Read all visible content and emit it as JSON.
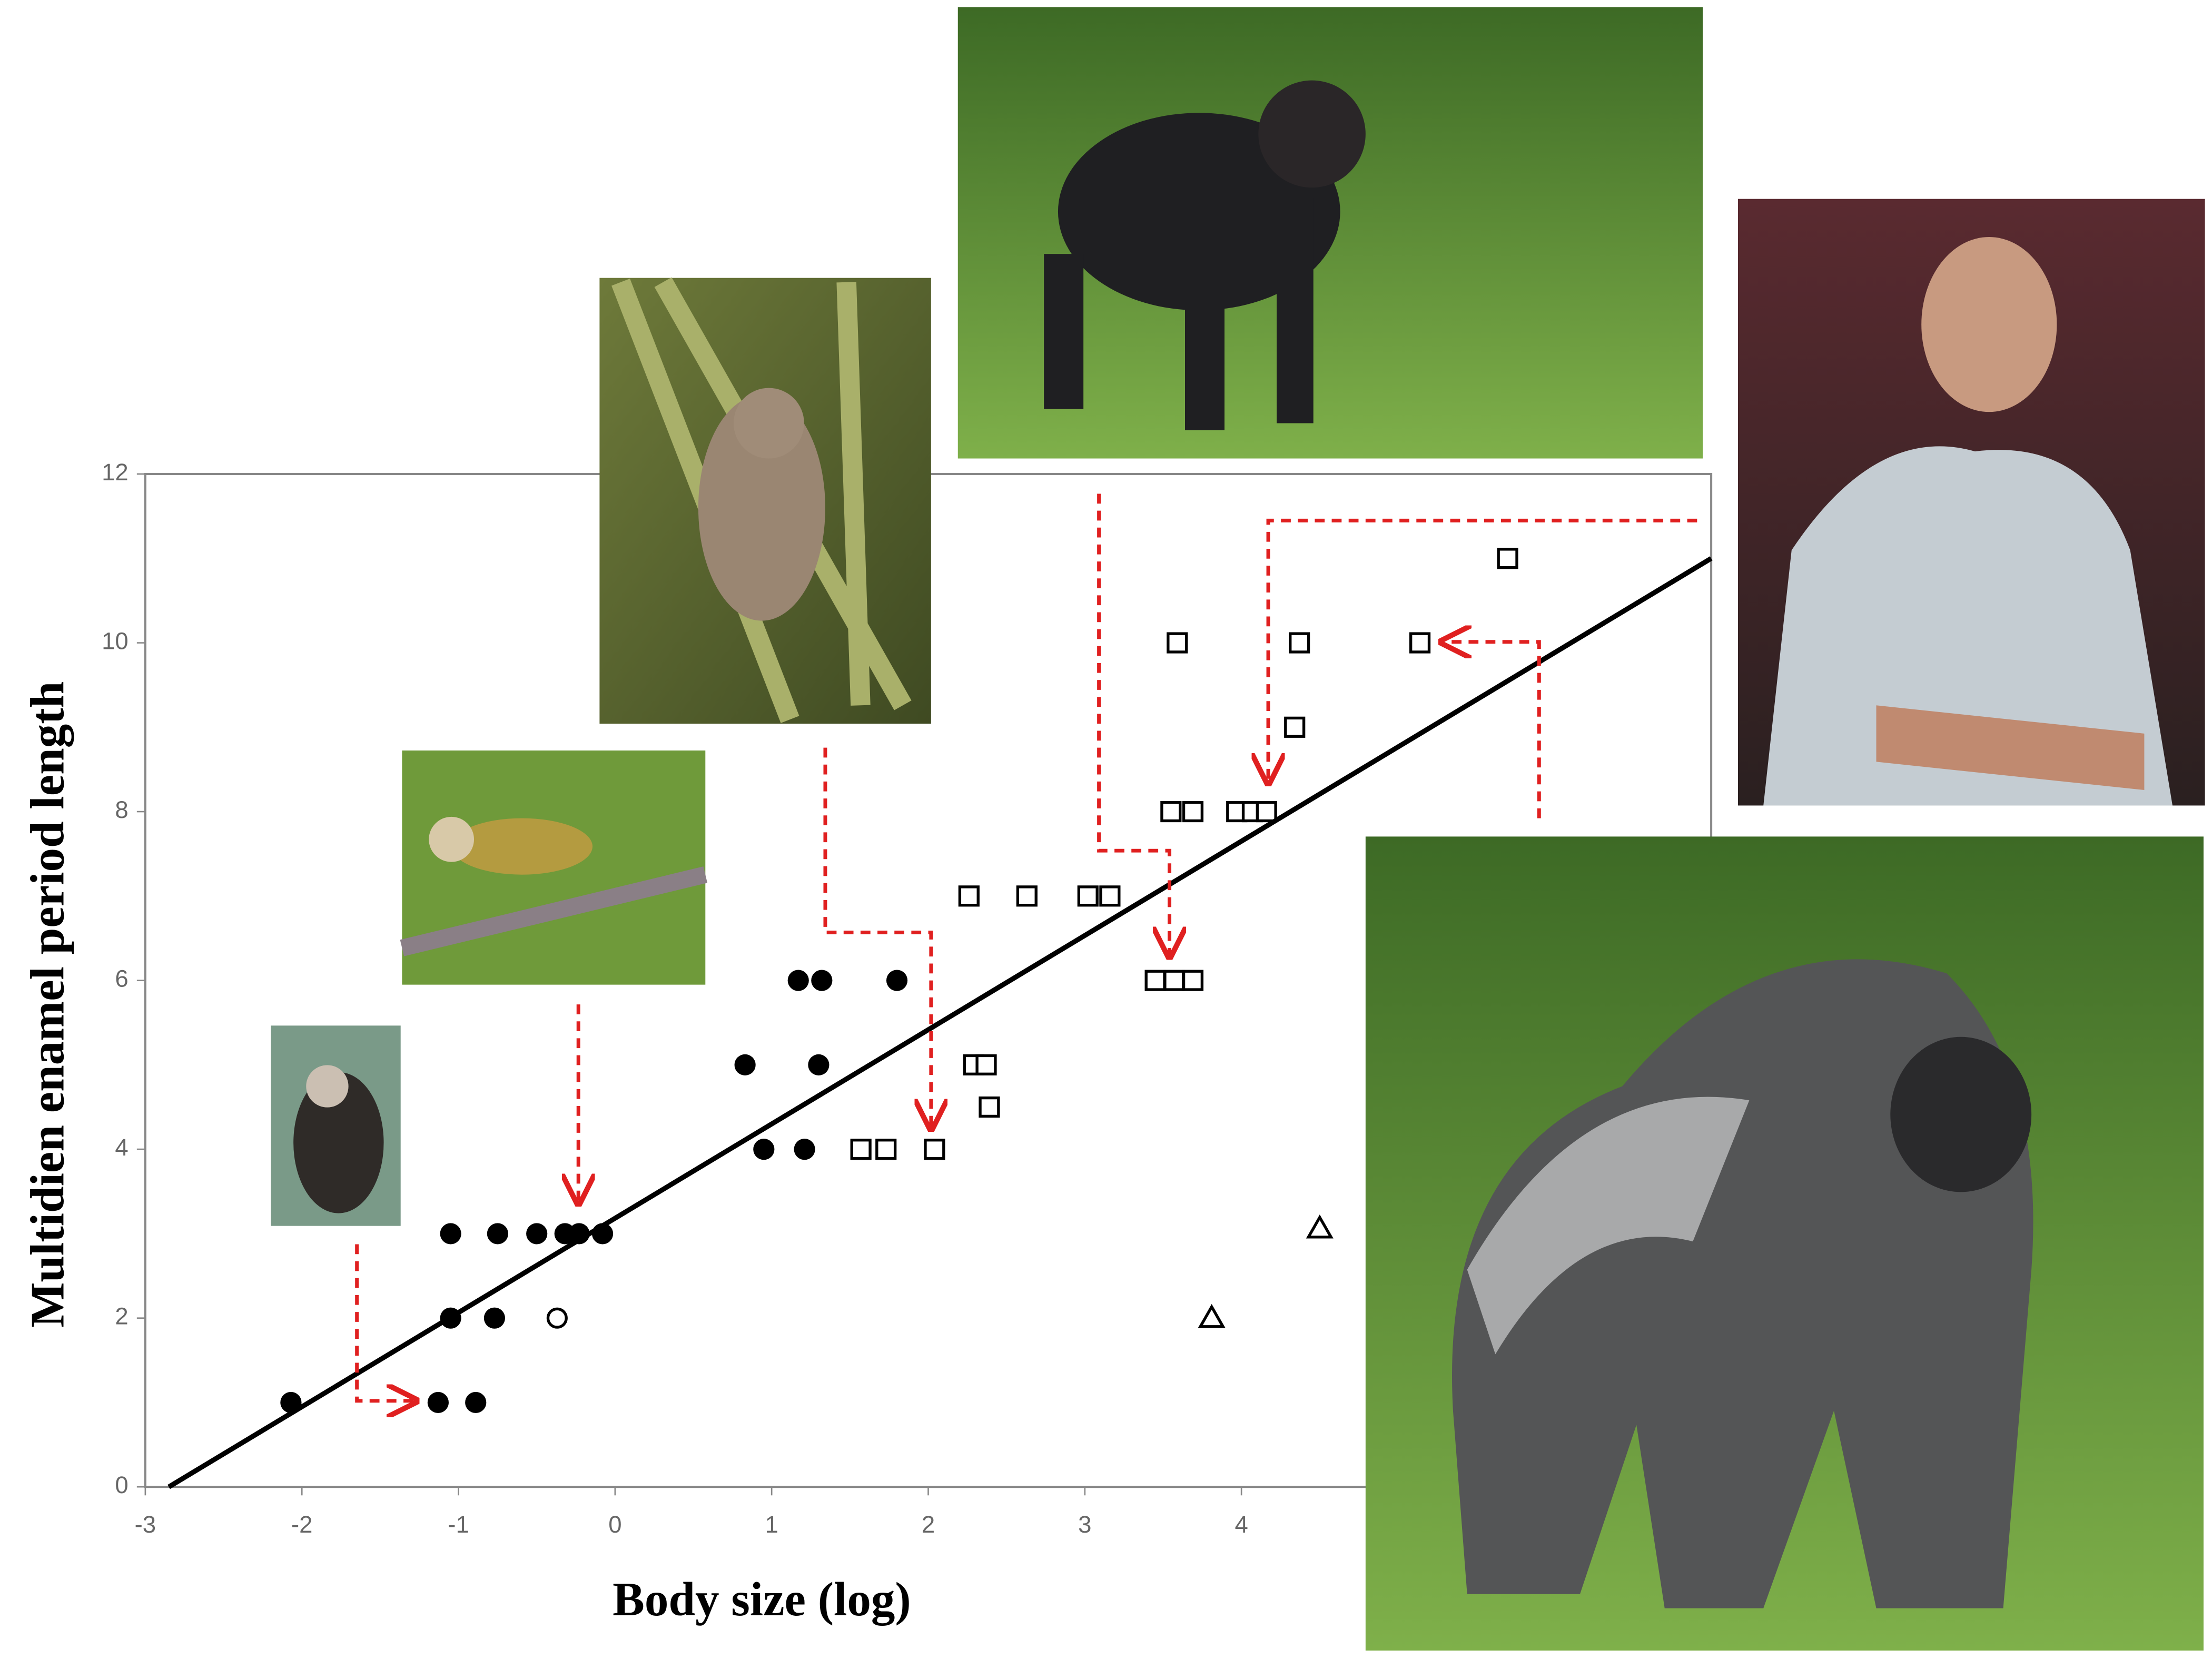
{
  "chart_data": {
    "type": "scatter",
    "xlabel": "Body size (log)",
    "ylabel": "Multidien enamel period length",
    "xlim": [
      -3,
      7
    ],
    "ylim": [
      0,
      12
    ],
    "xticks": [
      -3,
      -2,
      -1,
      0,
      1,
      2,
      3,
      4
    ],
    "yticks": [
      0,
      2,
      4,
      6,
      8,
      10,
      12
    ],
    "series": [
      {
        "marker": "circle-filled",
        "color": "#000000",
        "x": [
          -2.07,
          -1.13,
          -0.89,
          -1.05,
          -0.77,
          -1.05,
          -0.75,
          -0.5,
          -0.32,
          -0.23,
          -0.08,
          0.83,
          1.3,
          0.95,
          1.21,
          1.17,
          1.32,
          1.8
        ],
        "values": [
          1,
          1,
          1,
          2,
          2,
          3,
          3,
          3,
          3,
          3,
          3,
          5,
          5,
          4,
          4,
          6,
          6,
          6
        ]
      },
      {
        "marker": "circle-open",
        "color": "#000000",
        "x": [
          -0.37
        ],
        "values": [
          2
        ]
      },
      {
        "marker": "square-open",
        "color": "#000000",
        "x": [
          1.57,
          1.73,
          2.04,
          2.29,
          2.37,
          2.39,
          2.26,
          2.63,
          3.02,
          3.16,
          3.45,
          3.57,
          3.69,
          3.55,
          3.69,
          3.97,
          4.07,
          4.16,
          3.59,
          4.37,
          5.14,
          4.34,
          5.7
        ],
        "values": [
          4,
          4,
          4,
          5,
          5,
          4.5,
          7,
          7,
          7,
          7,
          6,
          6,
          6,
          8,
          8,
          8,
          8,
          8,
          10,
          10,
          10,
          9,
          11
        ]
      },
      {
        "marker": "triangle-open",
        "color": "#000000",
        "x": [
          3.81,
          4.5
        ],
        "values": [
          2,
          3.06
        ]
      },
      {
        "marker": "line",
        "color": "#000000",
        "x": [
          -2.85,
          7
        ],
        "values": [
          0,
          11
        ]
      }
    ]
  }
}
